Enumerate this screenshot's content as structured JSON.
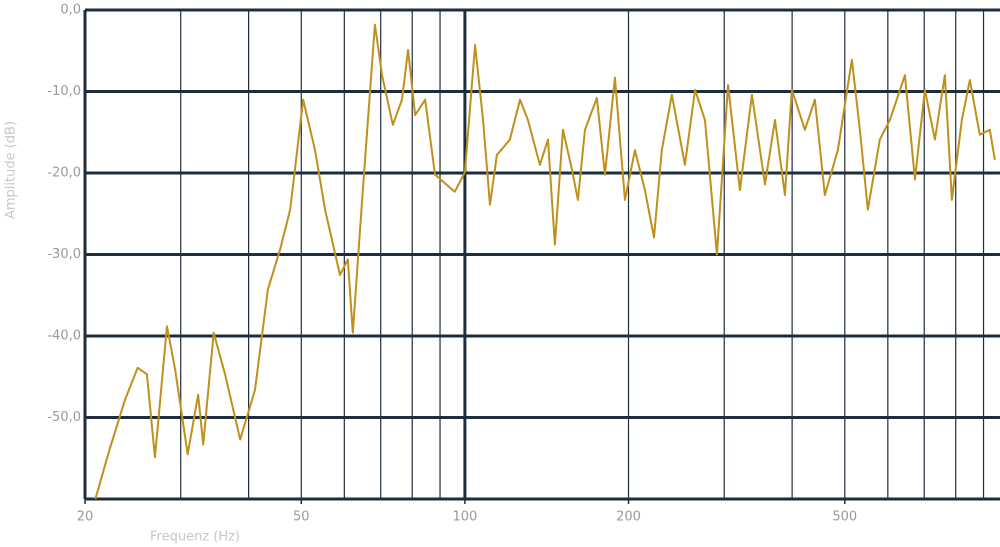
{
  "chart_data": {
    "type": "line",
    "xlabel": "Frequenz (Hz)",
    "ylabel": "Amplitude (dB)",
    "xscale": "log",
    "xlim": [
      20,
      965
    ],
    "ylim": [
      -60,
      0
    ],
    "xticks": [
      20,
      50,
      100,
      200,
      500
    ],
    "xgrid": [
      20,
      30,
      40,
      50,
      60,
      70,
      80,
      90,
      100,
      200,
      300,
      400,
      500,
      600,
      700,
      800,
      900
    ],
    "xgrid_major": [
      100
    ],
    "yticks": [
      {
        "value": 0,
        "label": "0,0"
      },
      {
        "value": -10,
        "label": "-10,0"
      },
      {
        "value": -20,
        "label": "-20,0"
      },
      {
        "value": -30,
        "label": "-30,0"
      },
      {
        "value": -40,
        "label": "-40,0"
      },
      {
        "value": -50,
        "label": "-50,0"
      }
    ],
    "grid": true,
    "series": [
      {
        "color": "#c0901c",
        "x": [
          20.9,
          22.2,
          23.7,
          25.0,
          26.0,
          26.9,
          28.3,
          29.3,
          30.9,
          32.3,
          33.0,
          34.5,
          36.2,
          38.6,
          41.1,
          43.4,
          45.7,
          47.7,
          50.4,
          53.0,
          55.3,
          58.9,
          60.9,
          62.2,
          64.7,
          68.3,
          70.4,
          73.7,
          76.6,
          78.6,
          81.0,
          84.5,
          88.1,
          95.8,
          100,
          104.4,
          108.0,
          111.2,
          114.5,
          121.0,
          126.3,
          130.6,
          137.4,
          142.2,
          146.4,
          151.5,
          157.4,
          161.4,
          166.3,
          174.9,
          181.0,
          188.8,
          197.0,
          205.5,
          214.4,
          222.8,
          230.3,
          240.3,
          254.0,
          265.1,
          276.5,
          290.9,
          304.9,
          320.6,
          337.4,
          356.5,
          372.0,
          388.0,
          399.6,
          422.2,
          440.5,
          459.5,
          485.5,
          515.2,
          533.0,
          551.3,
          580.0,
          605.1,
          645.1,
          673.0,
          702.0,
          732.4,
          764.0,
          787.0,
          821.0,
          849.2,
          885.9,
          924.3,
          944.3
        ],
        "values": [
          -60.0,
          -53.9,
          -47.8,
          -43.9,
          -44.7,
          -54.9,
          -38.8,
          -44.1,
          -54.5,
          -47.2,
          -53.3,
          -39.6,
          -44.7,
          -52.7,
          -46.6,
          -34.3,
          -29.4,
          -24.5,
          -11.0,
          -17.2,
          -24.5,
          -32.5,
          -30.6,
          -39.6,
          -23.3,
          -1.8,
          -8.0,
          -14.1,
          -11.0,
          -4.9,
          -12.9,
          -11.0,
          -20.2,
          -22.3,
          -19.9,
          -4.3,
          -13.5,
          -23.9,
          -17.8,
          -15.9,
          -11.0,
          -13.5,
          -19.0,
          -15.9,
          -28.8,
          -14.7,
          -19.6,
          -23.3,
          -14.7,
          -10.8,
          -20.2,
          -8.3,
          -23.3,
          -17.2,
          -22.1,
          -27.9,
          -17.2,
          -10.4,
          -19.0,
          -9.8,
          -13.5,
          -30.0,
          -9.2,
          -22.1,
          -10.4,
          -21.4,
          -13.5,
          -22.7,
          -9.8,
          -14.7,
          -11.0,
          -22.7,
          -17.2,
          -6.1,
          -14.7,
          -24.5,
          -15.9,
          -13.5,
          -8.0,
          -20.8,
          -9.8,
          -15.9,
          -8.0,
          -23.3,
          -13.5,
          -8.6,
          -15.3,
          -14.7,
          -18.4
        ]
      }
    ]
  }
}
